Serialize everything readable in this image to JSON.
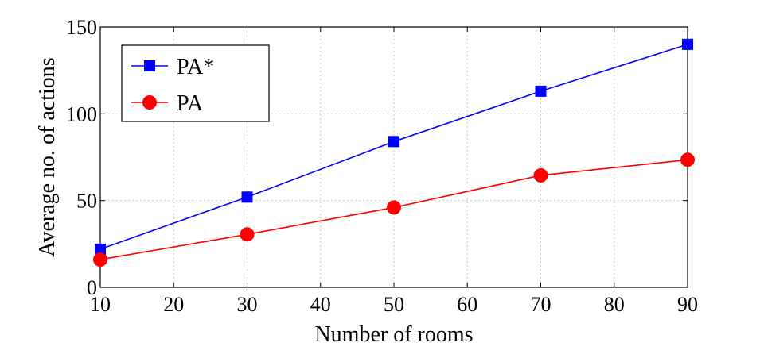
{
  "chart_data": {
    "type": "line",
    "title": "",
    "xlabel": "Number of rooms",
    "ylabel": "Average no. of actions",
    "xlim": [
      10,
      90
    ],
    "ylim": [
      0,
      150
    ],
    "xticks": [
      10,
      20,
      30,
      40,
      50,
      60,
      70,
      80,
      90
    ],
    "yticks": [
      0,
      50,
      100,
      150
    ],
    "grid": true,
    "legend_position": "top-left",
    "x": [
      10,
      30,
      50,
      70,
      90
    ],
    "series": [
      {
        "name": "PA*",
        "values": [
          22,
          52,
          84,
          113,
          140
        ],
        "color": "#0000ff",
        "marker": "square"
      },
      {
        "name": "PA",
        "values": [
          16,
          30.5,
          46,
          64.5,
          73.5
        ],
        "color": "#ff0000",
        "marker": "circle"
      }
    ]
  }
}
